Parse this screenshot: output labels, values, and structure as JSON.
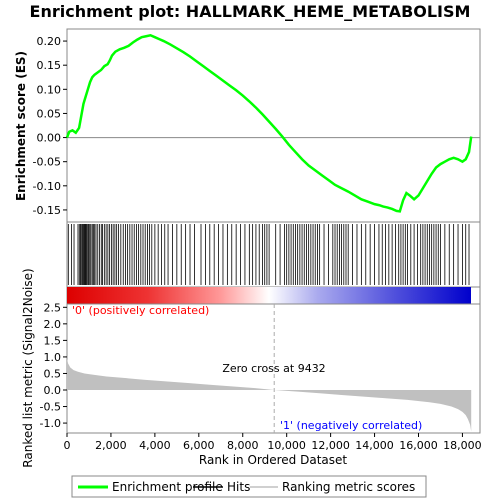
{
  "chart_data": {
    "type": "line",
    "title": "Enrichment plot: HALLMARK_HEME_METABOLISM",
    "top_panel": {
      "ylabel": "Enrichment score (ES)",
      "ylim": [
        -0.175,
        0.225
      ],
      "yticks": [
        -0.15,
        -0.1,
        -0.05,
        0.0,
        0.05,
        0.1,
        0.15,
        0.2
      ],
      "ytick_labels": [
        "-0.15",
        "-0.10",
        "-0.05",
        "0.00",
        "0.05",
        "0.10",
        "0.15",
        "0.20"
      ],
      "series": [
        {
          "name": "Enrichment profile",
          "color": "#00ff00",
          "x": [
            0,
            100,
            250,
            400,
            550,
            650,
            750,
            850,
            950,
            1050,
            1150,
            1250,
            1400,
            1550,
            1700,
            1850,
            1950,
            2050,
            2200,
            2400,
            2600,
            2800,
            3000,
            3200,
            3400,
            3600,
            3800,
            4000,
            4200,
            4400,
            4700,
            5000,
            5300,
            5600,
            5900,
            6200,
            6500,
            6800,
            7100,
            7400,
            7700,
            8000,
            8300,
            8600,
            8900,
            9200,
            9500,
            9800,
            10100,
            10400,
            10700,
            11000,
            11300,
            11600,
            11900,
            12200,
            12500,
            12800,
            13100,
            13400,
            13700,
            14000,
            14200,
            14400,
            14600,
            14800,
            15000,
            15150,
            15300,
            15450,
            15600,
            15800,
            16000,
            16200,
            16400,
            16600,
            16800,
            17000,
            17200,
            17400,
            17600,
            17800,
            18000,
            18150,
            18300,
            18400
          ],
          "y": [
            0.0,
            0.012,
            0.015,
            0.01,
            0.02,
            0.045,
            0.07,
            0.085,
            0.1,
            0.115,
            0.125,
            0.13,
            0.135,
            0.14,
            0.148,
            0.152,
            0.16,
            0.17,
            0.178,
            0.183,
            0.186,
            0.19,
            0.197,
            0.203,
            0.208,
            0.21,
            0.212,
            0.208,
            0.204,
            0.2,
            0.193,
            0.185,
            0.177,
            0.168,
            0.158,
            0.148,
            0.138,
            0.128,
            0.118,
            0.108,
            0.098,
            0.087,
            0.075,
            0.062,
            0.048,
            0.033,
            0.018,
            0.002,
            -0.015,
            -0.03,
            -0.045,
            -0.058,
            -0.068,
            -0.078,
            -0.088,
            -0.098,
            -0.105,
            -0.112,
            -0.12,
            -0.128,
            -0.133,
            -0.138,
            -0.14,
            -0.143,
            -0.145,
            -0.148,
            -0.152,
            -0.153,
            -0.13,
            -0.115,
            -0.12,
            -0.128,
            -0.12,
            -0.105,
            -0.09,
            -0.075,
            -0.062,
            -0.055,
            -0.05,
            -0.045,
            -0.042,
            -0.045,
            -0.05,
            -0.045,
            -0.03,
            0.002
          ]
        }
      ]
    },
    "hits_panel": {
      "name": "Hits",
      "hit_positions": [
        60,
        200,
        320,
        500,
        560,
        610,
        650,
        700,
        740,
        780,
        820,
        860,
        900,
        950,
        990,
        1040,
        1090,
        1150,
        1200,
        1260,
        1320,
        1400,
        1480,
        1560,
        1620,
        1700,
        1780,
        1860,
        1940,
        2020,
        2100,
        2180,
        2260,
        2340,
        2450,
        2560,
        2660,
        2760,
        2860,
        2960,
        3060,
        3160,
        3260,
        3360,
        3460,
        3560,
        3660,
        3760,
        3860,
        4000,
        4150,
        4300,
        4450,
        4600,
        4800,
        5000,
        5200,
        5400,
        5600,
        5800,
        6100,
        6300,
        6500,
        6700,
        6900,
        7100,
        7300,
        7500,
        7700,
        7900,
        8100,
        8300,
        8450,
        8600,
        8750,
        8900,
        9000,
        9100,
        9200,
        9500,
        9700,
        9900,
        10000,
        10100,
        10200,
        10300,
        10400,
        10500,
        10600,
        10700,
        10800,
        10900,
        11000,
        11100,
        11200,
        11300,
        11400,
        11500,
        11700,
        11900,
        12100,
        12200,
        12300,
        12400,
        12500,
        12600,
        12700,
        12800,
        13000,
        13200,
        13400,
        13600,
        13800,
        14000,
        14200,
        14350,
        14500,
        14650,
        14800,
        14950,
        15100,
        15200,
        15300,
        15400,
        15500,
        15650,
        15800,
        15950,
        16100,
        16200,
        16300,
        16400,
        16500,
        16600,
        16700,
        16800,
        16900,
        17000,
        17200,
        17400,
        17600,
        17800,
        18000,
        18150,
        18300
      ]
    },
    "metric_panel": {
      "ylabel": "Ranked list metric (Signal2Noise)",
      "ylim": [
        -1.3,
        2.6
      ],
      "yticks": [
        -1.0,
        -0.5,
        0.0,
        0.5,
        1.0,
        1.5,
        2.0,
        2.5
      ],
      "ytick_labels": [
        "-1.0",
        "-0.5",
        "0.0",
        "0.5",
        "1.0",
        "1.5",
        "2.0",
        "2.5"
      ],
      "series": [
        {
          "name": "Ranking metric scores",
          "color": "#c0c0c0",
          "x": [
            0,
            50,
            150,
            300,
            500,
            800,
            1200,
            1800,
            2500,
            3500,
            4500,
            5500,
            6500,
            7500,
            8500,
            9432,
            10500,
            11500,
            12500,
            13500,
            14500,
            15500,
            16500,
            17000,
            17500,
            17800,
            18000,
            18150,
            18250,
            18350,
            18400
          ],
          "y": [
            0.95,
            0.8,
            0.68,
            0.6,
            0.55,
            0.5,
            0.46,
            0.41,
            0.37,
            0.31,
            0.26,
            0.21,
            0.16,
            0.11,
            0.06,
            0.0,
            -0.05,
            -0.1,
            -0.15,
            -0.2,
            -0.25,
            -0.3,
            -0.37,
            -0.42,
            -0.5,
            -0.58,
            -0.66,
            -0.76,
            -0.88,
            -1.05,
            -1.25
          ]
        }
      ],
      "zero_cross": 9432,
      "zero_cross_label": "Zero cross at 9432",
      "pos_label": "'0' (positively correlated)",
      "neg_label": "'1' (negatively correlated)",
      "pos_color": "#ff0000",
      "neg_color": "#0000ff"
    },
    "xlabel": "Rank in Ordered Dataset",
    "xlim": [
      0,
      18800
    ],
    "xticks": [
      0,
      2000,
      4000,
      6000,
      8000,
      10000,
      12000,
      14000,
      16000,
      18000
    ],
    "xtick_labels": [
      "0",
      "2,000",
      "4,000",
      "6,000",
      "8,000",
      "10,000",
      "12,000",
      "14,000",
      "16,000",
      "18,000"
    ],
    "legend": [
      {
        "label": "Enrichment profile",
        "color": "#00ff00",
        "style": "line"
      },
      {
        "label": "Hits",
        "color": "#000000",
        "style": "line"
      },
      {
        "label": "Ranking metric scores",
        "color": "#c0c0c0",
        "style": "line"
      }
    ],
    "legend_placement": "bottom"
  }
}
